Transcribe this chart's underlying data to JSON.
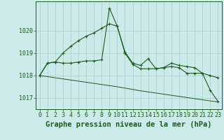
{
  "title": "Graphe pression niveau de la mer (hPa)",
  "background_color": "#cceaea",
  "grid_color": "#aacccc",
  "line_color_dark": "#1a5c1a",
  "line_color_light": "#2d8b2d",
  "x_labels": [
    "0",
    "1",
    "2",
    "3",
    "4",
    "5",
    "6",
    "7",
    "8",
    "9",
    "10",
    "11",
    "12",
    "13",
    "14",
    "15",
    "16",
    "17",
    "18",
    "19",
    "20",
    "21",
    "22",
    "23"
  ],
  "series1": [
    1018.0,
    1018.55,
    1018.6,
    1019.0,
    1019.3,
    1019.55,
    1019.75,
    1019.9,
    1020.1,
    1020.3,
    1020.2,
    1019.05,
    1018.55,
    1018.45,
    1018.75,
    1018.3,
    1018.35,
    1018.55,
    1018.45,
    1018.4,
    1018.35,
    1018.1,
    1017.35,
    1016.85
  ],
  "series2": [
    1018.0,
    1018.55,
    1018.6,
    1018.55,
    1018.55,
    1018.6,
    1018.65,
    1018.65,
    1018.7,
    1021.0,
    1020.2,
    1019.0,
    1018.5,
    1018.3,
    1018.3,
    1018.3,
    1018.35,
    1018.4,
    1018.35,
    1018.1,
    1018.1,
    1018.1,
    1018.0,
    1017.9
  ],
  "series3": [
    1018.0,
    1017.95,
    1017.9,
    1017.85,
    1017.8,
    1017.75,
    1017.7,
    1017.65,
    1017.6,
    1017.55,
    1017.5,
    1017.44,
    1017.38,
    1017.32,
    1017.27,
    1017.22,
    1017.17,
    1017.12,
    1017.07,
    1017.02,
    1016.97,
    1016.92,
    1016.87,
    1016.82
  ],
  "ylim": [
    1016.5,
    1021.3
  ],
  "yticks": [
    1017,
    1018,
    1019,
    1020
  ],
  "title_fontsize": 7.5,
  "tick_fontsize": 6
}
